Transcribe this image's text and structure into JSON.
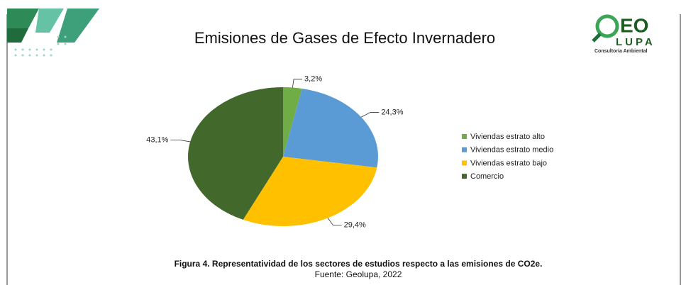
{
  "chart_data": {
    "type": "pie",
    "title": "Emisiones de Gases de Efecto Invernadero",
    "categories": [
      "Viviendas estrato alto",
      "Viviendas estrato medio",
      "Viviendas estrato bajo",
      "Comercio"
    ],
    "values": [
      3.2,
      24.3,
      29.4,
      43.1
    ],
    "value_labels": [
      "3,2%",
      "24,3%",
      "29,4%",
      "43,1%"
    ],
    "colors": [
      "#70ad47",
      "#5b9bd5",
      "#ffc000",
      "#43682b"
    ],
    "legend": "right"
  },
  "caption": "Figura 4. Representatividad de los sectores de estudios respecto a las emisiones de CO2e.",
  "source": "Fuente: Geolupa, 2022",
  "logo": {
    "top": "EO",
    "bottom": "LUPA",
    "tagline": "Consultoria Ambiental"
  }
}
